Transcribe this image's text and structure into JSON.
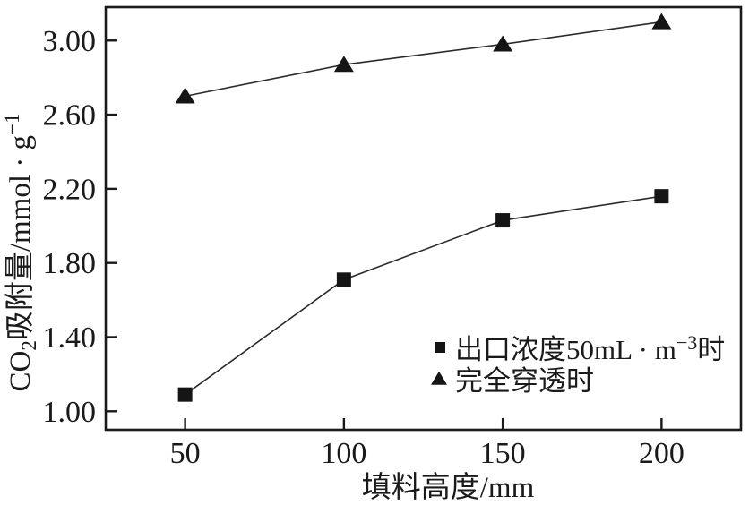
{
  "figure": {
    "background": "#ffffff",
    "ink_color": "#1a1a1a",
    "line_color": "#2b2b2b",
    "marker_color": "#151515"
  },
  "chart_data": {
    "type": "line",
    "title": "",
    "xlabel": "填料高度/mm",
    "ylabel": "CO₂吸附量/mmol·g⁻¹",
    "ylabel_parts": {
      "pre": "CO",
      "sub": "2",
      "mid": "吸附量/mmol · g",
      "sup": "−1"
    },
    "x": [
      50,
      100,
      150,
      200
    ],
    "x_tick_labels": [
      "50",
      "100",
      "150",
      "200"
    ],
    "y_tick_values": [
      1.0,
      1.4,
      1.8,
      2.2,
      2.6,
      3.0
    ],
    "y_tick_labels": [
      "1.00",
      "1.40",
      "1.80",
      "2.20",
      "2.60",
      "3.00"
    ],
    "xlim": [
      25,
      225
    ],
    "ylim": [
      0.9,
      3.18
    ],
    "grid": false,
    "legend_position": "inside-lower-right",
    "series": [
      {
        "name": "出口浓度50mL·m⁻³时",
        "name_parts": {
          "pre": "出口浓度50mL · m",
          "sup": "−3",
          "post": "时"
        },
        "marker": "square",
        "values": [
          1.09,
          1.71,
          2.03,
          2.16
        ]
      },
      {
        "name": "完全穿透时",
        "name_parts": {
          "pre": "完全穿透时",
          "sup": "",
          "post": ""
        },
        "marker": "triangle",
        "values": [
          2.7,
          2.87,
          2.98,
          3.1
        ]
      }
    ]
  }
}
